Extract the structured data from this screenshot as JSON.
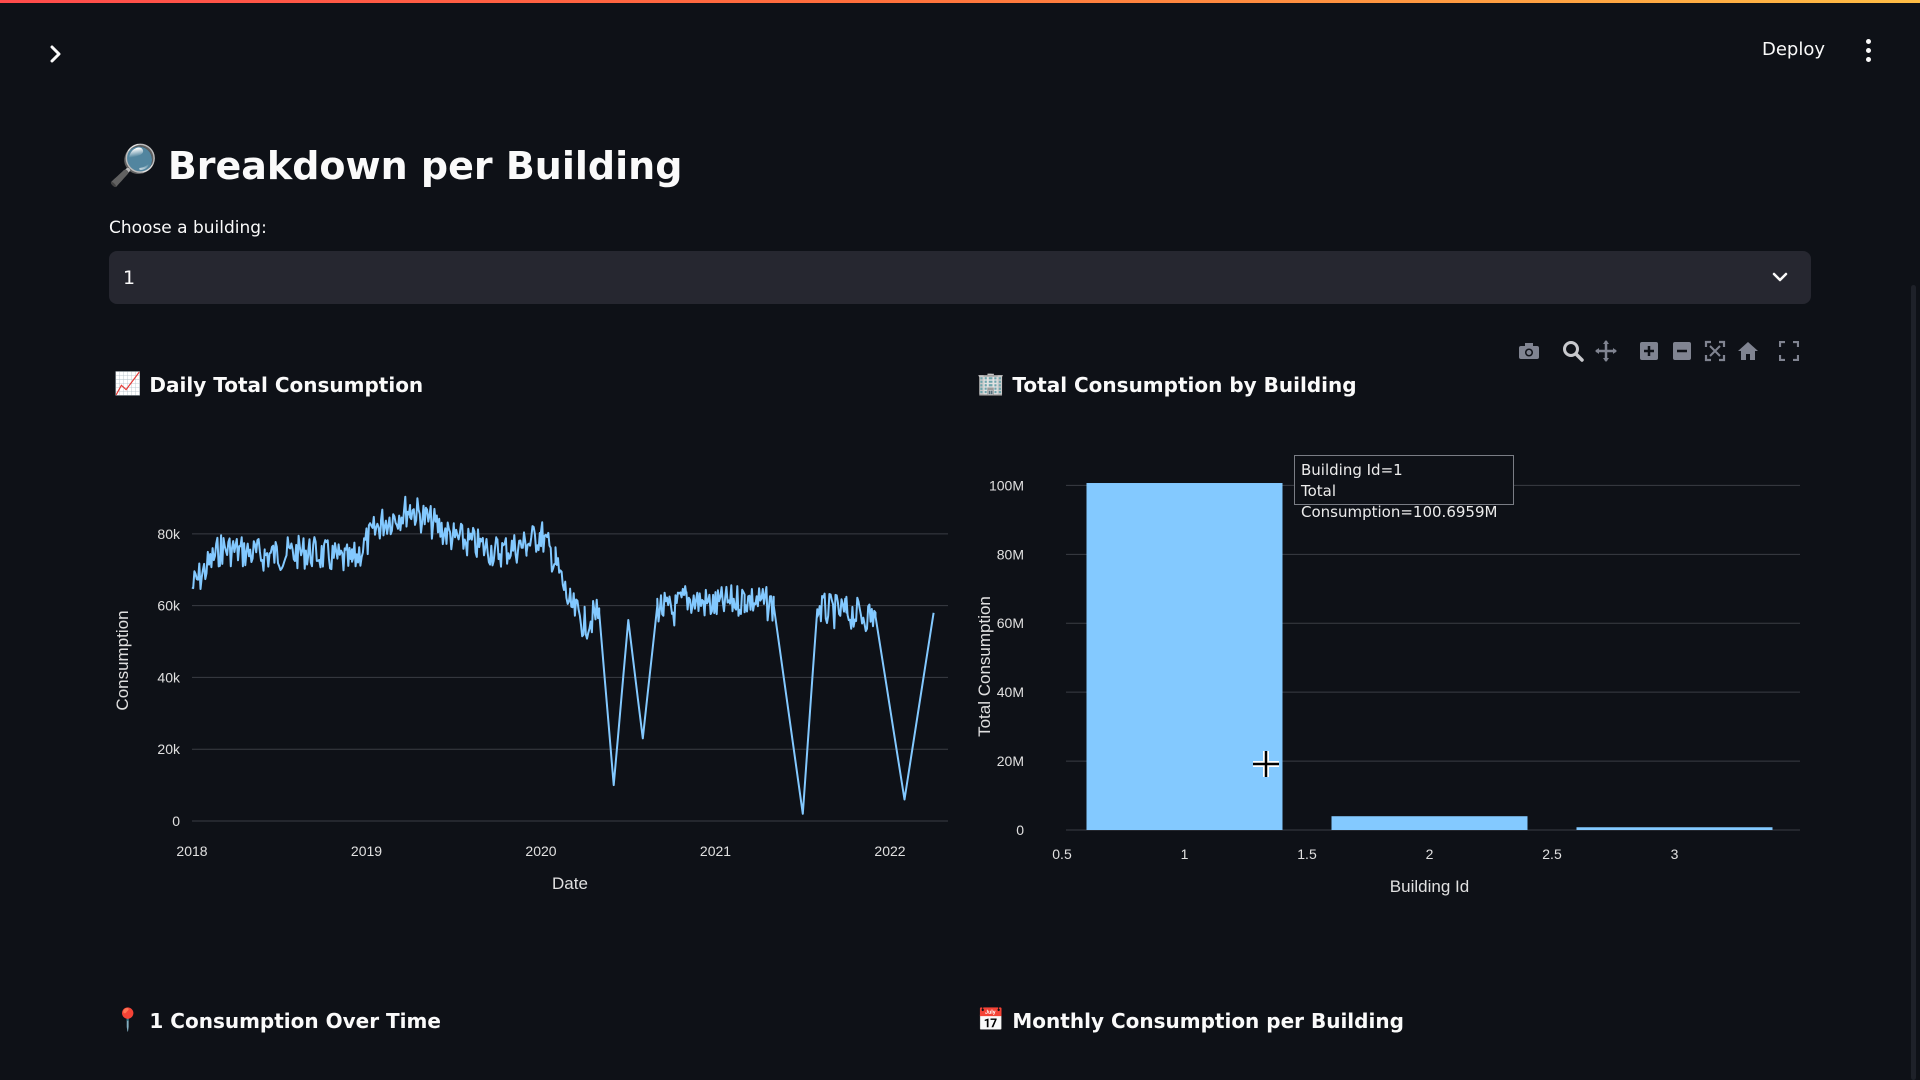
{
  "header": {
    "sidebar_toggle_icon": "chevron-right-icon",
    "deploy_label": "Deploy",
    "menu_icon": "kebab-menu-icon"
  },
  "main": {
    "title_emoji": "🔎",
    "title": "Breakdown per Building",
    "select_label": "Choose a building:",
    "select_value": "1"
  },
  "modebar_icons": [
    "camera-icon",
    "zoom-icon",
    "pan-icon",
    "zoom-in-icon",
    "zoom-out-icon",
    "autoscale-icon",
    "reset-axes-icon",
    "fullscreen-icon"
  ],
  "sections": {
    "daily": {
      "emoji": "📈",
      "title": "Daily Total Consumption"
    },
    "by_building": {
      "emoji": "🏢",
      "title": "Total Consumption by Building"
    },
    "over_time": {
      "emoji": "📍",
      "title": "1 Consumption Over Time"
    },
    "monthly": {
      "emoji": "📅",
      "title": "Monthly Consumption per Building"
    }
  },
  "chart_data": [
    {
      "type": "line",
      "xlabel": "Date",
      "ylabel": "Consumption",
      "x_ticks": [
        "2018",
        "2019",
        "2020",
        "2021",
        "2022"
      ],
      "y_ticks": [
        "0",
        "20k",
        "40k",
        "60k",
        "80k"
      ],
      "ylim": [
        0,
        95000
      ],
      "color": "#83c9ff",
      "series": [
        {
          "x": [
            "2018-01",
            "2018-03",
            "2018-06",
            "2018-09",
            "2018-12",
            "2019-02",
            "2019-04",
            "2019-07",
            "2019-10",
            "2019-12",
            "2020-01",
            "2020-02",
            "2020-03",
            "2020-04",
            "2020-05",
            "2020-06",
            "2020-07",
            "2020-08",
            "2020-09",
            "2020-10",
            "2020-11",
            "2021-01",
            "2021-03",
            "2021-05",
            "2021-07",
            "2021-08",
            "2021-10",
            "2021-12",
            "2022-02",
            "2022-04"
          ],
          "values": [
            65000,
            76000,
            74000,
            75000,
            72000,
            83000,
            87000,
            79000,
            75000,
            77000,
            80000,
            72000,
            60000,
            55000,
            58000,
            10000,
            56000,
            23000,
            60000,
            58000,
            62000,
            60000,
            62000,
            60000,
            2000,
            59000,
            58000,
            57000,
            6000,
            58000
          ]
        }
      ]
    },
    {
      "type": "bar",
      "xlabel": "Building Id",
      "ylabel": "Total Consumption",
      "x_ticks": [
        "0.5",
        "1",
        "1.5",
        "2",
        "2.5",
        "3"
      ],
      "y_ticks": [
        "0",
        "20M",
        "40M",
        "60M",
        "80M",
        "100M"
      ],
      "categories": [
        1,
        2,
        3
      ],
      "values": [
        100.6959,
        4,
        0.8
      ],
      "unit": "M",
      "ylim": [
        0,
        100.7
      ],
      "xlim": [
        0.5,
        3.5
      ],
      "color": "#83c9ff",
      "tooltip": {
        "line1": "Building Id=1",
        "line2": "Total Consumption=100.6959M"
      }
    }
  ]
}
